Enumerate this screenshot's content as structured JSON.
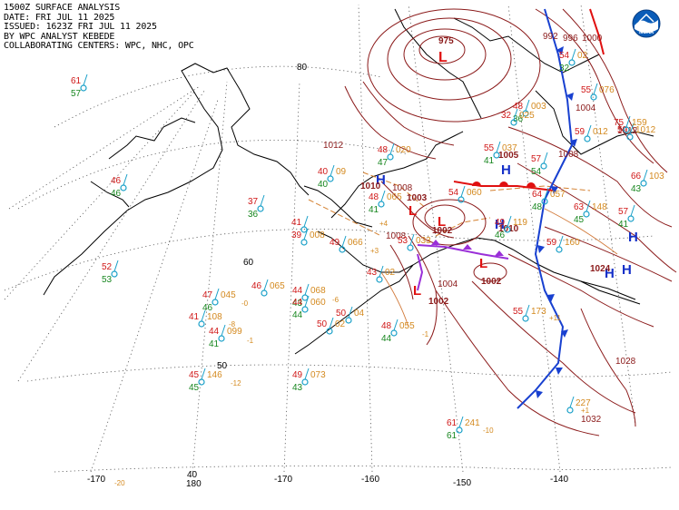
{
  "header": {
    "lines": [
      "1500Z SURFACE ANALYSIS",
      "DATE: FRI JUL 11 2025",
      "ISSUED: 1623Z FRI JUL 11 2025",
      "BY WPC ANALYST KEBEDE",
      "COLLABORATING CENTERS: WPC, NHC, OPC"
    ]
  },
  "logo": {
    "text": "NOAA"
  },
  "graticule": {
    "lat_labels": [
      "80",
      "60",
      "50",
      "40"
    ],
    "lon_labels": [
      "180",
      "-170",
      "-160",
      "-150",
      "-140",
      "-170"
    ]
  },
  "pressure_centers": [
    {
      "type": "L",
      "value": "975"
    },
    {
      "type": "H",
      "value": "1010"
    },
    {
      "type": "H",
      "value": "1005"
    },
    {
      "type": "H",
      "value": "1010"
    },
    {
      "type": "L",
      "value": "1003"
    },
    {
      "type": "L",
      "value": "1002"
    },
    {
      "type": "L",
      "value": "1002"
    },
    {
      "type": "L",
      "value": "1002"
    },
    {
      "type": "H",
      "value": "1024"
    },
    {
      "type": "H",
      "value": ""
    },
    {
      "type": "H",
      "value": ""
    }
  ],
  "isobar_labels": [
    "1012",
    "1008",
    "1008",
    "1004",
    "1008",
    "1012",
    "1028",
    "1032",
    "992",
    "996",
    "1000",
    "1004"
  ],
  "stations": [
    {
      "t": "61",
      "d": "57",
      "p": ""
    },
    {
      "t": "46",
      "d": "46",
      "p": ""
    },
    {
      "t": "52",
      "d": "53",
      "p": ""
    },
    {
      "t": "37",
      "d": "36",
      "p": ""
    },
    {
      "t": "40",
      "d": "40",
      "p": "09"
    },
    {
      "t": "41",
      "d": "",
      "p": ""
    },
    {
      "t": "39",
      "d": "",
      "p": "008"
    },
    {
      "t": "48",
      "d": "47",
      "p": "020"
    },
    {
      "t": "48",
      "d": "41",
      "p": "065"
    },
    {
      "t": "49",
      "d": "",
      "p": "066"
    },
    {
      "t": "53",
      "d": "",
      "p": "033"
    },
    {
      "t": "43",
      "d": "",
      "p": "02"
    },
    {
      "t": "47",
      "d": "46",
      "p": "045"
    },
    {
      "t": "46",
      "d": "",
      "p": "065"
    },
    {
      "t": "44",
      "d": "43",
      "p": "068"
    },
    {
      "t": "44",
      "d": "44",
      "p": "060"
    },
    {
      "t": "41",
      "d": "",
      "p": "108"
    },
    {
      "t": "44",
      "d": "41",
      "p": "099"
    },
    {
      "t": "50",
      "d": "",
      "p": "02"
    },
    {
      "t": "50",
      "d": "",
      "p": "04"
    },
    {
      "t": "48",
      "d": "44",
      "p": "055"
    },
    {
      "t": "45",
      "d": "45",
      "p": "146"
    },
    {
      "t": "49",
      "d": "43",
      "p": "073"
    },
    {
      "t": "55",
      "d": "41",
      "p": "037"
    },
    {
      "t": "57",
      "d": "54",
      "p": ""
    },
    {
      "t": "54",
      "d": "",
      "p": "060"
    },
    {
      "t": "64",
      "d": "48",
      "p": "057"
    },
    {
      "t": "63",
      "d": "45",
      "p": "148"
    },
    {
      "t": "57",
      "d": "41",
      "p": ""
    },
    {
      "t": "59",
      "d": "",
      "p": "160"
    },
    {
      "t": "55",
      "d": "",
      "p": "173"
    },
    {
      "t": "61",
      "d": "61",
      "p": "241"
    },
    {
      "t": "",
      "d": "",
      "p": "227"
    },
    {
      "t": "54",
      "d": "32",
      "p": "02"
    },
    {
      "t": "55",
      "d": "",
      "p": "076"
    },
    {
      "t": "59",
      "d": "",
      "p": "012"
    },
    {
      "t": "66",
      "d": "43",
      "p": "103"
    },
    {
      "t": "48",
      "d": "36",
      "p": "003"
    },
    {
      "t": "32",
      "d": "",
      "p": "025"
    },
    {
      "t": "49",
      "d": "46",
      "p": "119"
    },
    {
      "t": "59",
      "d": "",
      "p": "1012"
    },
    {
      "t": "75",
      "d": "",
      "p": "159"
    }
  ],
  "pressure_tendencies": [
    "+4",
    "+3",
    "-6",
    "-8",
    "-1",
    "-12",
    "-10",
    "-20",
    "+11",
    "+1",
    "-0",
    "-1"
  ],
  "colors": {
    "isobar": "#8b1a1a",
    "isobar_light": "#d27a3a",
    "high": "#1530c8",
    "low": "#e01010",
    "cold_front": "#1840d0",
    "warm_front": "#e01010",
    "occluded": "#9a2fd8",
    "trough": "#d48030",
    "temperature": "#d01818",
    "dewpoint": "#16861e",
    "pressure_text": "#d48a20",
    "station": "#1aa0c8",
    "land_outline": "#000000",
    "graticule": "#555555"
  }
}
